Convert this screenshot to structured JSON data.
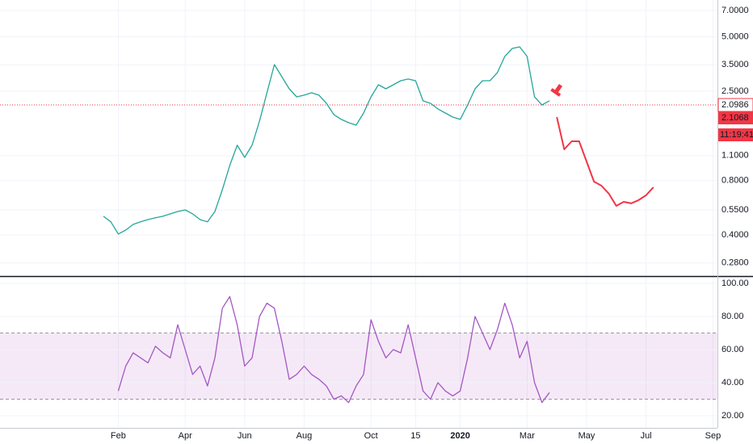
{
  "chart_data": [
    {
      "type": "line",
      "log": true,
      "grid": true,
      "categories": [
        null,
        null,
        "Feb",
        null,
        null,
        null,
        null,
        null,
        null,
        null,
        null,
        "Apr",
        null,
        null,
        null,
        null,
        null,
        null,
        null,
        "Jun",
        null,
        null,
        null,
        null,
        null,
        null,
        null,
        "Aug",
        null,
        null,
        null,
        null,
        null,
        null,
        null,
        null,
        "Oct",
        null,
        null,
        null,
        null,
        null,
        "15",
        null,
        null,
        null,
        null,
        null,
        "2020",
        null,
        null,
        null,
        null,
        null,
        null,
        null,
        null,
        "Mar",
        null,
        null,
        null,
        null,
        null,
        null,
        null,
        "May",
        null,
        null,
        null,
        null,
        null,
        null,
        null,
        "Jul",
        null,
        null,
        null,
        null,
        null,
        null,
        null,
        null,
        "Sep"
      ],
      "series": [
        {
          "color": "#26a69a",
          "values": [
            0.508,
            0.473,
            0.405,
            0.426,
            0.458,
            0.473,
            0.487,
            0.498,
            0.508,
            0.524,
            0.54,
            0.551,
            0.524,
            0.487,
            0.473,
            0.54,
            0.713,
            0.971,
            1.256,
            1.076,
            1.256,
            1.711,
            2.452,
            3.514,
            3.01,
            2.58,
            2.327,
            2.377,
            2.452,
            2.377,
            2.144,
            1.857,
            1.746,
            1.675,
            1.624,
            1.895,
            2.327,
            2.716,
            2.58,
            2.716,
            2.86,
            2.92,
            2.86,
            2.212,
            2.144,
            1.996,
            1.895,
            1.8,
            1.746,
            2.1,
            2.58,
            2.86,
            2.86,
            3.171,
            3.896,
            4.314,
            4.406,
            3.896,
            2.327,
            2.1,
            2.212,
            null,
            null,
            null,
            null,
            null,
            null,
            null,
            null,
            null,
            null,
            null,
            null,
            null,
            null,
            null,
            null,
            null,
            null,
            null,
            null,
            null,
            null
          ]
        },
        {
          "color": "#f23645",
          "values": [
            null,
            null,
            null,
            null,
            null,
            null,
            null,
            null,
            null,
            null,
            null,
            null,
            null,
            null,
            null,
            null,
            null,
            null,
            null,
            null,
            null,
            null,
            null,
            null,
            null,
            null,
            null,
            null,
            null,
            null,
            null,
            null,
            null,
            null,
            null,
            null,
            null,
            null,
            null,
            null,
            null,
            null,
            null,
            null,
            null,
            null,
            null,
            null,
            null,
            null,
            null,
            null,
            null,
            null,
            null,
            null,
            null,
            null,
            null,
            null,
            null,
            1.8,
            1.192,
            1.322,
            1.322,
            1.022,
            0.79,
            0.75,
            0.678,
            0.58,
            0.611,
            0.599,
            0.624,
            0.664,
            0.736,
            null,
            null,
            null,
            null,
            null,
            null,
            null,
            null
          ]
        }
      ],
      "ylim": [
        0.237,
        8.0
      ],
      "yticks": [
        {
          "value": 7,
          "label": "7.0000"
        },
        {
          "value": 5,
          "label": "5.0000"
        },
        {
          "value": 3.5,
          "label": "3.5000"
        },
        {
          "value": 2.5,
          "label": "2.5000"
        },
        {
          "value": 1.1,
          "label": "1.1000"
        },
        {
          "value": 0.8,
          "label": "0.8000"
        },
        {
          "value": 0.55,
          "label": "0.5500"
        },
        {
          "value": 0.4,
          "label": "0.4000"
        },
        {
          "value": 0.28,
          "label": "0.2800"
        }
      ],
      "price_line": 2.0986,
      "last_price": 2.1068,
      "countdown": "11:19:41"
    },
    {
      "type": "line",
      "grid": true,
      "series": [
        {
          "color": "#a457c4",
          "values": [
            null,
            null,
            35,
            50,
            58,
            55,
            52,
            62,
            58,
            55,
            75,
            60,
            45,
            50,
            38,
            55,
            85,
            92,
            75,
            50,
            55,
            80,
            88,
            85,
            65,
            42,
            45,
            50,
            45,
            42,
            38,
            30,
            32,
            28,
            38,
            45,
            78,
            65,
            55,
            60,
            58,
            75,
            55,
            35,
            30,
            40,
            35,
            32,
            35,
            55,
            80,
            70,
            60,
            72,
            88,
            75,
            55,
            65,
            40,
            28,
            34,
            null,
            null,
            null,
            null,
            null,
            null,
            null,
            null,
            null,
            null,
            null,
            null,
            null,
            null,
            null,
            null,
            null,
            null,
            null,
            null,
            null,
            null
          ]
        }
      ],
      "ylim": [
        12.7,
        103.9
      ],
      "yticks": [
        {
          "value": 100,
          "label": "100.00"
        },
        {
          "value": 80,
          "label": "80.00"
        },
        {
          "value": 60,
          "label": "60.00"
        },
        {
          "value": 40,
          "label": "40.00"
        },
        {
          "value": 20,
          "label": "20.00"
        }
      ],
      "band": [
        30,
        70
      ],
      "band_color": "#9c27b0"
    }
  ]
}
